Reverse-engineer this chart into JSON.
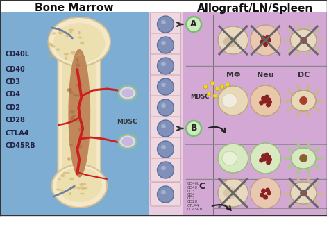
{
  "title_left": "Bone Marrow",
  "title_right": "Allograft/LN/Spleen",
  "bg_left": "#7eadd4",
  "bg_right": "#d4a8d4",
  "bg_middle": "#e8cce0",
  "labels_left": [
    "CD40L",
    "CD40",
    "CD3",
    "CD4",
    "CD2",
    "CD28",
    "CTLA4",
    "CD45RB"
  ],
  "labels_right_small": [
    "CD40L",
    "CD40",
    "CD3",
    "CD4",
    "CD2",
    "CD28",
    "CTLA4",
    "CD45RB"
  ],
  "col_labels": [
    "MΦ",
    "Neu",
    "DC"
  ],
  "mdsc_label": "MDSC",
  "bone_fill": "#f5e8c8",
  "bone_outline": "#d4c090",
  "bone_inner": "#ede0b0",
  "marrow_fill": "#c0885a",
  "marrow_dark": "#a06840",
  "cell_row_fill": "#f0d8e0",
  "cell_row_edge": "#d0a8b8",
  "cell_blue_fill": "#8090b8",
  "cell_blue_edge": "#5870a0",
  "mdsc_fill": "#e0d8f0",
  "mdsc_edge": "#90c090",
  "mdsc_inner": "#c8b8e0",
  "a_b_fill": "#d0e8c0",
  "a_b_edge": "#70c070",
  "cross_color": "#666666",
  "mf_fill": "#e8d8c0",
  "mf_edge": "#c0a880",
  "neu_fill": "#e8c8b8",
  "neu_edge": "#c0a090",
  "dc_fill": "#e8d8c0",
  "dc_edge": "#c0a880",
  "green_cell_fill": "#d8e8c0",
  "green_cell_edge": "#a0c880",
  "yellow_dot": "#f0d820",
  "yellow_dot_edge": "#c0a800",
  "arrow_color": "#333333",
  "sep_line_color": "#888888",
  "vert_line_color": "#666666",
  "text_color": "#222244",
  "small_text_color": "#444444"
}
